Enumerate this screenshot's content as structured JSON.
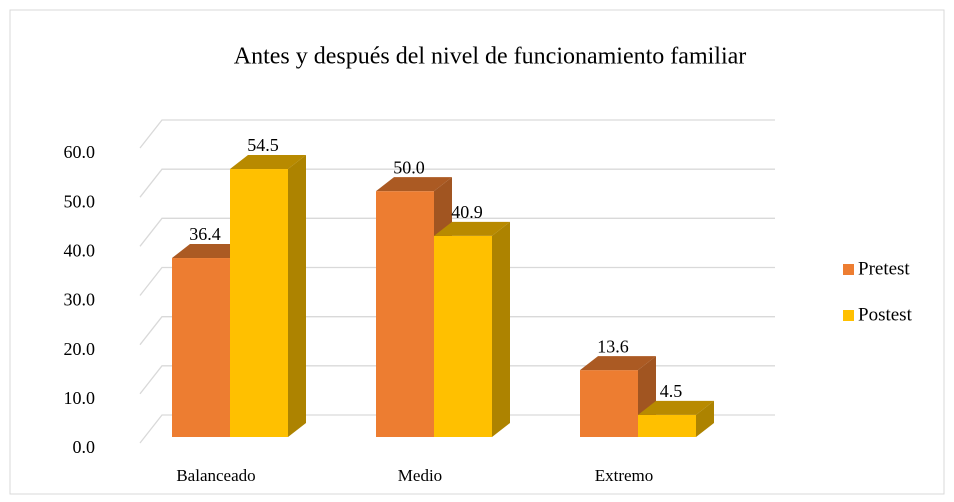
{
  "chart_data": {
    "type": "bar3d",
    "title": "Antes y después del nivel de funcionamiento  familiar",
    "categories": [
      "Balanceado",
      "Medio",
      "Extremo"
    ],
    "series": [
      {
        "name": "Pretest",
        "color": "#ED7D31",
        "values": [
          36.4,
          50.0,
          13.6
        ],
        "value_labels": [
          "36.4",
          "50.0",
          "13.6"
        ]
      },
      {
        "name": "Postest",
        "color": "#FFC000",
        "values": [
          54.5,
          40.9,
          4.5
        ],
        "value_labels": [
          "54.5",
          "40.9",
          "4.5"
        ]
      }
    ],
    "ylim": [
      0,
      60
    ],
    "yticks": [
      {
        "value": 0,
        "label": "0.0"
      },
      {
        "value": 10,
        "label": "10.0"
      },
      {
        "value": 20,
        "label": "20.0"
      },
      {
        "value": 30,
        "label": "30.0"
      },
      {
        "value": 40,
        "label": "40.0"
      },
      {
        "value": 50,
        "label": "50.0"
      },
      {
        "value": 60,
        "label": "60.0"
      }
    ],
    "grid": true,
    "legend": "right"
  }
}
